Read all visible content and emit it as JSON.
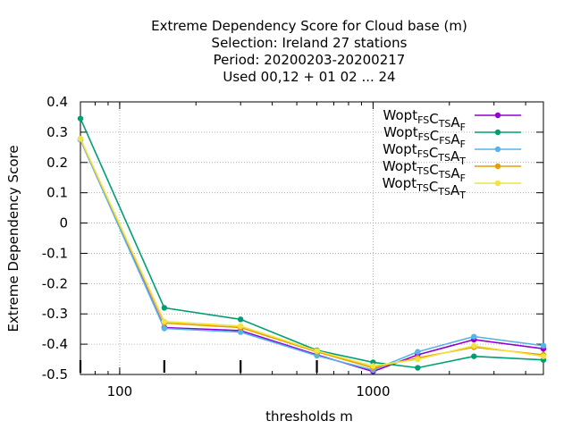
{
  "chart_data": {
    "type": "line",
    "title_lines": [
      "Extreme Dependency Score  for Cloud base (m)",
      "Selection: Ireland      27 stations",
      "Period: 20200203-20200217",
      "Used  00,12  + 01 02 ... 24"
    ],
    "xlabel": "thresholds m",
    "ylabel": "Extreme Dependency Score",
    "x_scale": "log",
    "xlim": [
      70,
      4700
    ],
    "ylim": [
      -0.5,
      0.4
    ],
    "x_ticks": [
      {
        "value": 100,
        "label": "100"
      },
      {
        "value": 1000,
        "label": "1000"
      }
    ],
    "y_ticks": [
      {
        "value": 0.4,
        "label": "0.4"
      },
      {
        "value": 0.3,
        "label": "0.3"
      },
      {
        "value": 0.2,
        "label": "0.2"
      },
      {
        "value": 0.1,
        "label": "0.1"
      },
      {
        "value": 0,
        "label": "0"
      },
      {
        "value": -0.1,
        "label": "-0.1"
      },
      {
        "value": -0.2,
        "label": "-0.2"
      },
      {
        "value": -0.3,
        "label": "-0.3"
      },
      {
        "value": -0.4,
        "label": "-0.4"
      },
      {
        "value": -0.5,
        "label": "-0.5"
      }
    ],
    "grid": true,
    "legend_position": "top-right",
    "x": [
      70,
      150,
      300,
      600,
      1000,
      1500,
      2500,
      4700
    ],
    "series": [
      {
        "base": "Wopt",
        "s1": "FS",
        "mid": "C",
        "s2": "TS",
        "end": "A",
        "s3": "F",
        "color": "#9400d3",
        "values": [
          0.275,
          -0.345,
          -0.355,
          -0.435,
          -0.49,
          -0.435,
          -0.385,
          -0.415
        ]
      },
      {
        "base": "Wopt",
        "s1": "FS",
        "mid": "C",
        "s2": "FS",
        "end": "A",
        "s3": "F",
        "color": "#009e73",
        "values": [
          0.345,
          -0.28,
          -0.318,
          -0.42,
          -0.46,
          -0.478,
          -0.44,
          -0.452
        ]
      },
      {
        "base": "Wopt",
        "s1": "FS",
        "mid": "C",
        "s2": "TS",
        "end": "A",
        "s3": "T",
        "color": "#56b4e9",
        "values": [
          0.275,
          -0.348,
          -0.36,
          -0.438,
          -0.485,
          -0.425,
          -0.375,
          -0.405
        ]
      },
      {
        "base": "Wopt",
        "s1": "TS",
        "mid": "C",
        "s2": "TS",
        "end": "A",
        "s3": "F",
        "color": "#e69f00",
        "values": [
          0.278,
          -0.33,
          -0.345,
          -0.425,
          -0.478,
          -0.445,
          -0.41,
          -0.435
        ]
      },
      {
        "base": "Wopt",
        "s1": "TS",
        "mid": "C",
        "s2": "TS",
        "end": "A",
        "s3": "T",
        "color": "#f0e442",
        "values": [
          0.278,
          -0.325,
          -0.34,
          -0.422,
          -0.472,
          -0.45,
          -0.405,
          -0.44
        ]
      }
    ],
    "sample_size_marks": [
      70,
      150,
      300,
      600,
      1000
    ]
  }
}
